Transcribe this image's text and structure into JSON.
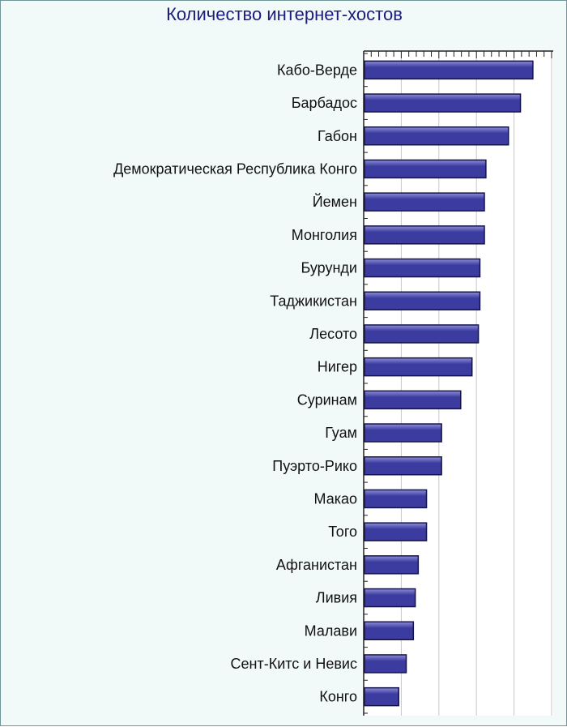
{
  "chart_data": {
    "type": "bar",
    "orientation": "horizontal",
    "title": "Количество интернет-хостов",
    "xlabel": "",
    "ylabel": "",
    "categories": [
      "Кабо-Верде",
      "Барбадос",
      "Габон",
      "Демократическая Республика Конго",
      "Йемен",
      "Монголия",
      "Бурунди",
      "Таджикистан",
      "Лесото",
      "Нигер",
      "Суринам",
      "Гуам",
      "Пуэрто-Рико",
      "Макао",
      "Того",
      "Афганистан",
      "Ливия",
      "Малави",
      "Сент-Китс и Невис",
      "Конго"
    ],
    "values": [
      44.8,
      41.5,
      38.3,
      32.3,
      31.9,
      31.9,
      30.7,
      30.7,
      30.3,
      28.6,
      25.6,
      20.5,
      20.5,
      16.5,
      16.5,
      14.3,
      13.5,
      13.0,
      11.1,
      9.1
    ],
    "xlim": [
      0,
      50
    ],
    "grid": true,
    "legend": "none",
    "colors": {
      "bar_fill": "#3b3ba0",
      "bar_highlight": "#8e8ed8",
      "bar_edge": "#14144a",
      "grid": "#c7c7c7",
      "axis": "#222222",
      "title": "#1c1c80",
      "background": "#f1f9f9",
      "plot_background": "#ffffff"
    }
  }
}
